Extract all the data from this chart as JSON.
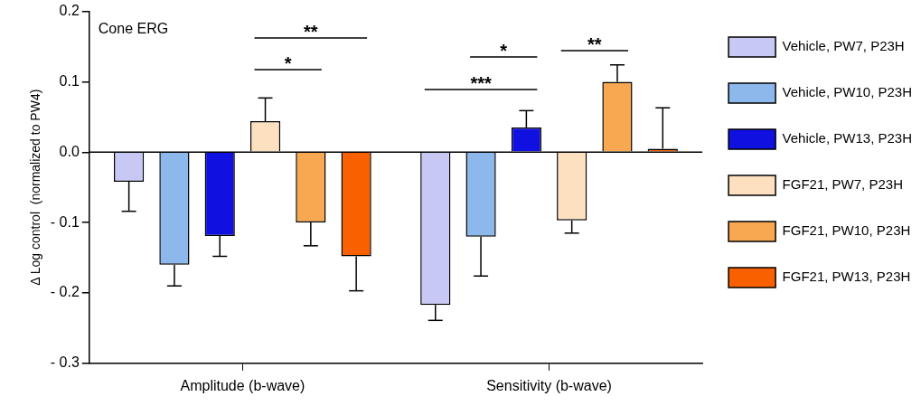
{
  "chart_data": {
    "type": "bar",
    "ylabel": "Δ Log control  (normalized to PW4)",
    "categories": [
      "Amplitude (b-wave)",
      "Sensitivity (b-wave)"
    ],
    "ylim": [
      -0.3,
      0.2
    ],
    "yticks": [
      0.2,
      0.1,
      {
        "value": 0.0,
        "label": "0.0"
      },
      {
        "value": -0.1,
        "label": "- 0.1"
      },
      {
        "value": -0.2,
        "label": "- 0.2"
      },
      {
        "value": -0.3,
        "label": "- 0.3"
      }
    ],
    "series": [
      {
        "name": "Vehicle, PW7, P23H",
        "color": "#c8c8f4",
        "values": [
          -0.042,
          -0.217
        ],
        "errors": [
          [
            -0.084,
            -0.042
          ],
          [
            -0.239,
            -0.217
          ]
        ]
      },
      {
        "name": "Vehicle, PW10, P23H",
        "color": "#8cb8ec",
        "values": [
          -0.16,
          -0.12
        ],
        "errors": [
          [
            -0.19,
            -0.16
          ],
          [
            -0.176,
            -0.12
          ]
        ]
      },
      {
        "name": "Vehicle, PW13, P23H",
        "color": "#1010e0",
        "values": [
          -0.119,
          0.035
        ],
        "errors": [
          [
            -0.148,
            -0.119
          ],
          [
            0.035,
            0.059
          ]
        ]
      },
      {
        "name": "FGF21, PW7, P23H",
        "color": "#fde0c0",
        "values": [
          0.044,
          -0.097
        ],
        "errors": [
          [
            0.044,
            0.077
          ],
          [
            -0.115,
            -0.097
          ]
        ]
      },
      {
        "name": "FGF21, PW10, P23H",
        "color": "#f8a850",
        "values": [
          -0.1,
          0.1
        ],
        "errors": [
          [
            -0.133,
            -0.1
          ],
          [
            0.1,
            0.124
          ]
        ]
      },
      {
        "name": "FGF21, PW13, P23H",
        "color": "#f86000",
        "values": [
          -0.148,
          0.005
        ],
        "errors": [
          [
            -0.197,
            -0.148
          ],
          [
            0.005,
            0.063
          ]
        ]
      }
    ],
    "ref_lines": [
      {
        "axis": "y",
        "value": 0
      }
    ],
    "annotations": [
      "Cone ERG",
      "**",
      "*",
      "***",
      "*",
      "**"
    ],
    "grid": false,
    "legend": "right"
  }
}
